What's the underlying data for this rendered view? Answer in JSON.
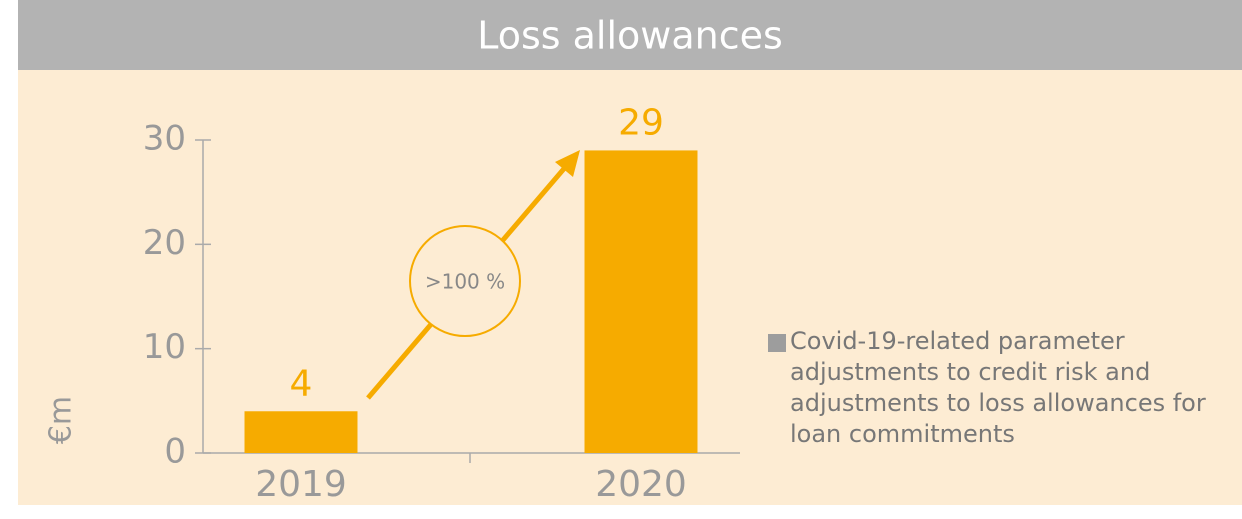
{
  "chart_data": {
    "type": "bar",
    "title": "Loss allowances",
    "y_label": "€m",
    "categories": [
      "2019",
      "2020"
    ],
    "series": [
      {
        "name": "Covid-19-related parameter adjustments to credit risk and adjustments to loss allowances for loan commitments",
        "color": "#f6ab00",
        "values": [
          4,
          29
        ]
      }
    ],
    "legend_marker_color": "#9d9d9d",
    "ylim": [
      0,
      30
    ],
    "yticks": [
      0,
      10,
      20,
      30
    ],
    "annotation": ">100 %"
  }
}
